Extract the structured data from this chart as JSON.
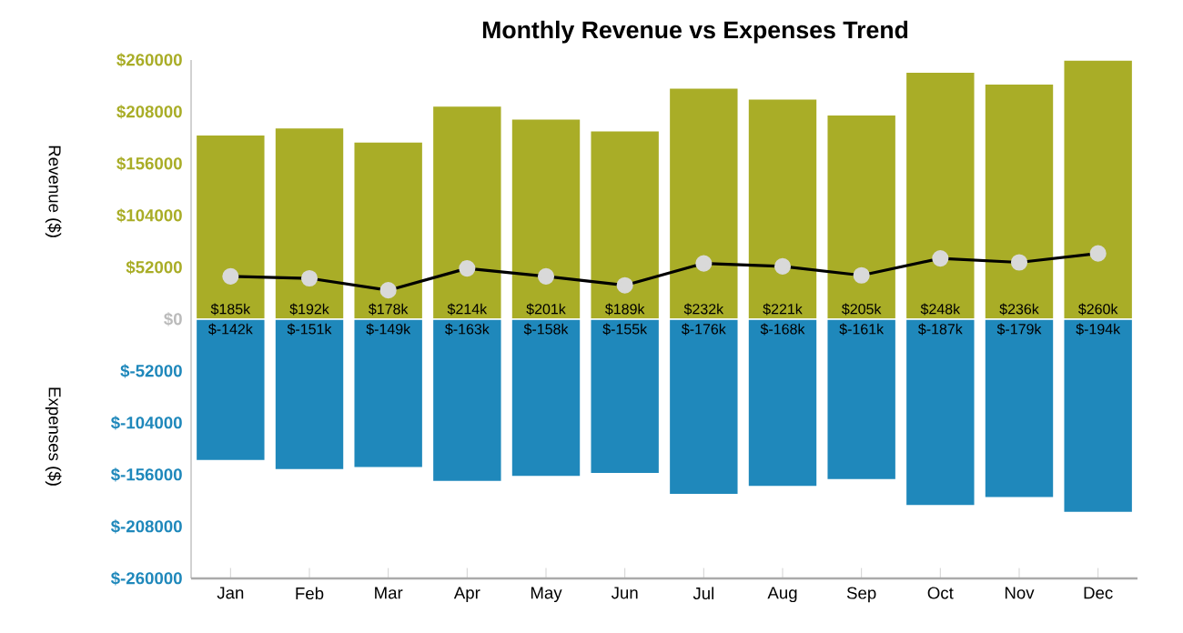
{
  "chart_data": {
    "type": "bar",
    "title": "Monthly Revenue vs Expenses Trend",
    "ylabel": "Revenue ($)",
    "annotations": [
      "Expenses ($)"
    ],
    "categories": [
      "Jan",
      "Feb",
      "Mar",
      "Apr",
      "May",
      "Jun",
      "Jul",
      "Aug",
      "Sep",
      "Oct",
      "Nov",
      "Dec"
    ],
    "series": [
      {
        "color": "#a9ad27",
        "values": [
          185000,
          192000,
          178000,
          214000,
          201000,
          189000,
          232000,
          221000,
          205000,
          248000,
          236000,
          260000
        ],
        "value_labels": [
          "$185k",
          "$192k",
          "$178k",
          "$214k",
          "$201k",
          "$189k",
          "$232k",
          "$221k",
          "$205k",
          "$248k",
          "$236k",
          "$260k"
        ]
      },
      {
        "color": "#1f88bb",
        "values": [
          -142000,
          -151000,
          -149000,
          -163000,
          -158000,
          -155000,
          -176000,
          -168000,
          -161000,
          -187000,
          -179000,
          -194000
        ],
        "value_labels": [
          "$-142k",
          "$-151k",
          "$-149k",
          "$-163k",
          "$-158k",
          "$-155k",
          "$-176k",
          "$-168k",
          "$-161k",
          "$-187k",
          "$-179k",
          "$-194k"
        ]
      },
      {
        "type": "line",
        "color": "#000000",
        "marker": "circle",
        "values": [
          43000,
          41000,
          29000,
          51000,
          43000,
          34000,
          56000,
          53000,
          44000,
          61000,
          57000,
          66000
        ]
      }
    ],
    "ylim": [
      -260000,
      260000
    ],
    "yticks": [
      {
        "value": 260000,
        "label": "$260000"
      },
      {
        "value": 208000,
        "label": "$208000"
      },
      {
        "value": 156000,
        "label": "$156000"
      },
      {
        "value": 104000,
        "label": "$104000"
      },
      {
        "value": 52000,
        "label": "$52000"
      },
      {
        "value": 0,
        "label": "$0"
      },
      {
        "value": -52000,
        "label": "$-52000"
      },
      {
        "value": -104000,
        "label": "$-104000"
      },
      {
        "value": -156000,
        "label": "$-156000"
      },
      {
        "value": -208000,
        "label": "$-208000"
      },
      {
        "value": -260000,
        "label": "$-260000"
      }
    ],
    "grid": false,
    "stacked": true
  }
}
